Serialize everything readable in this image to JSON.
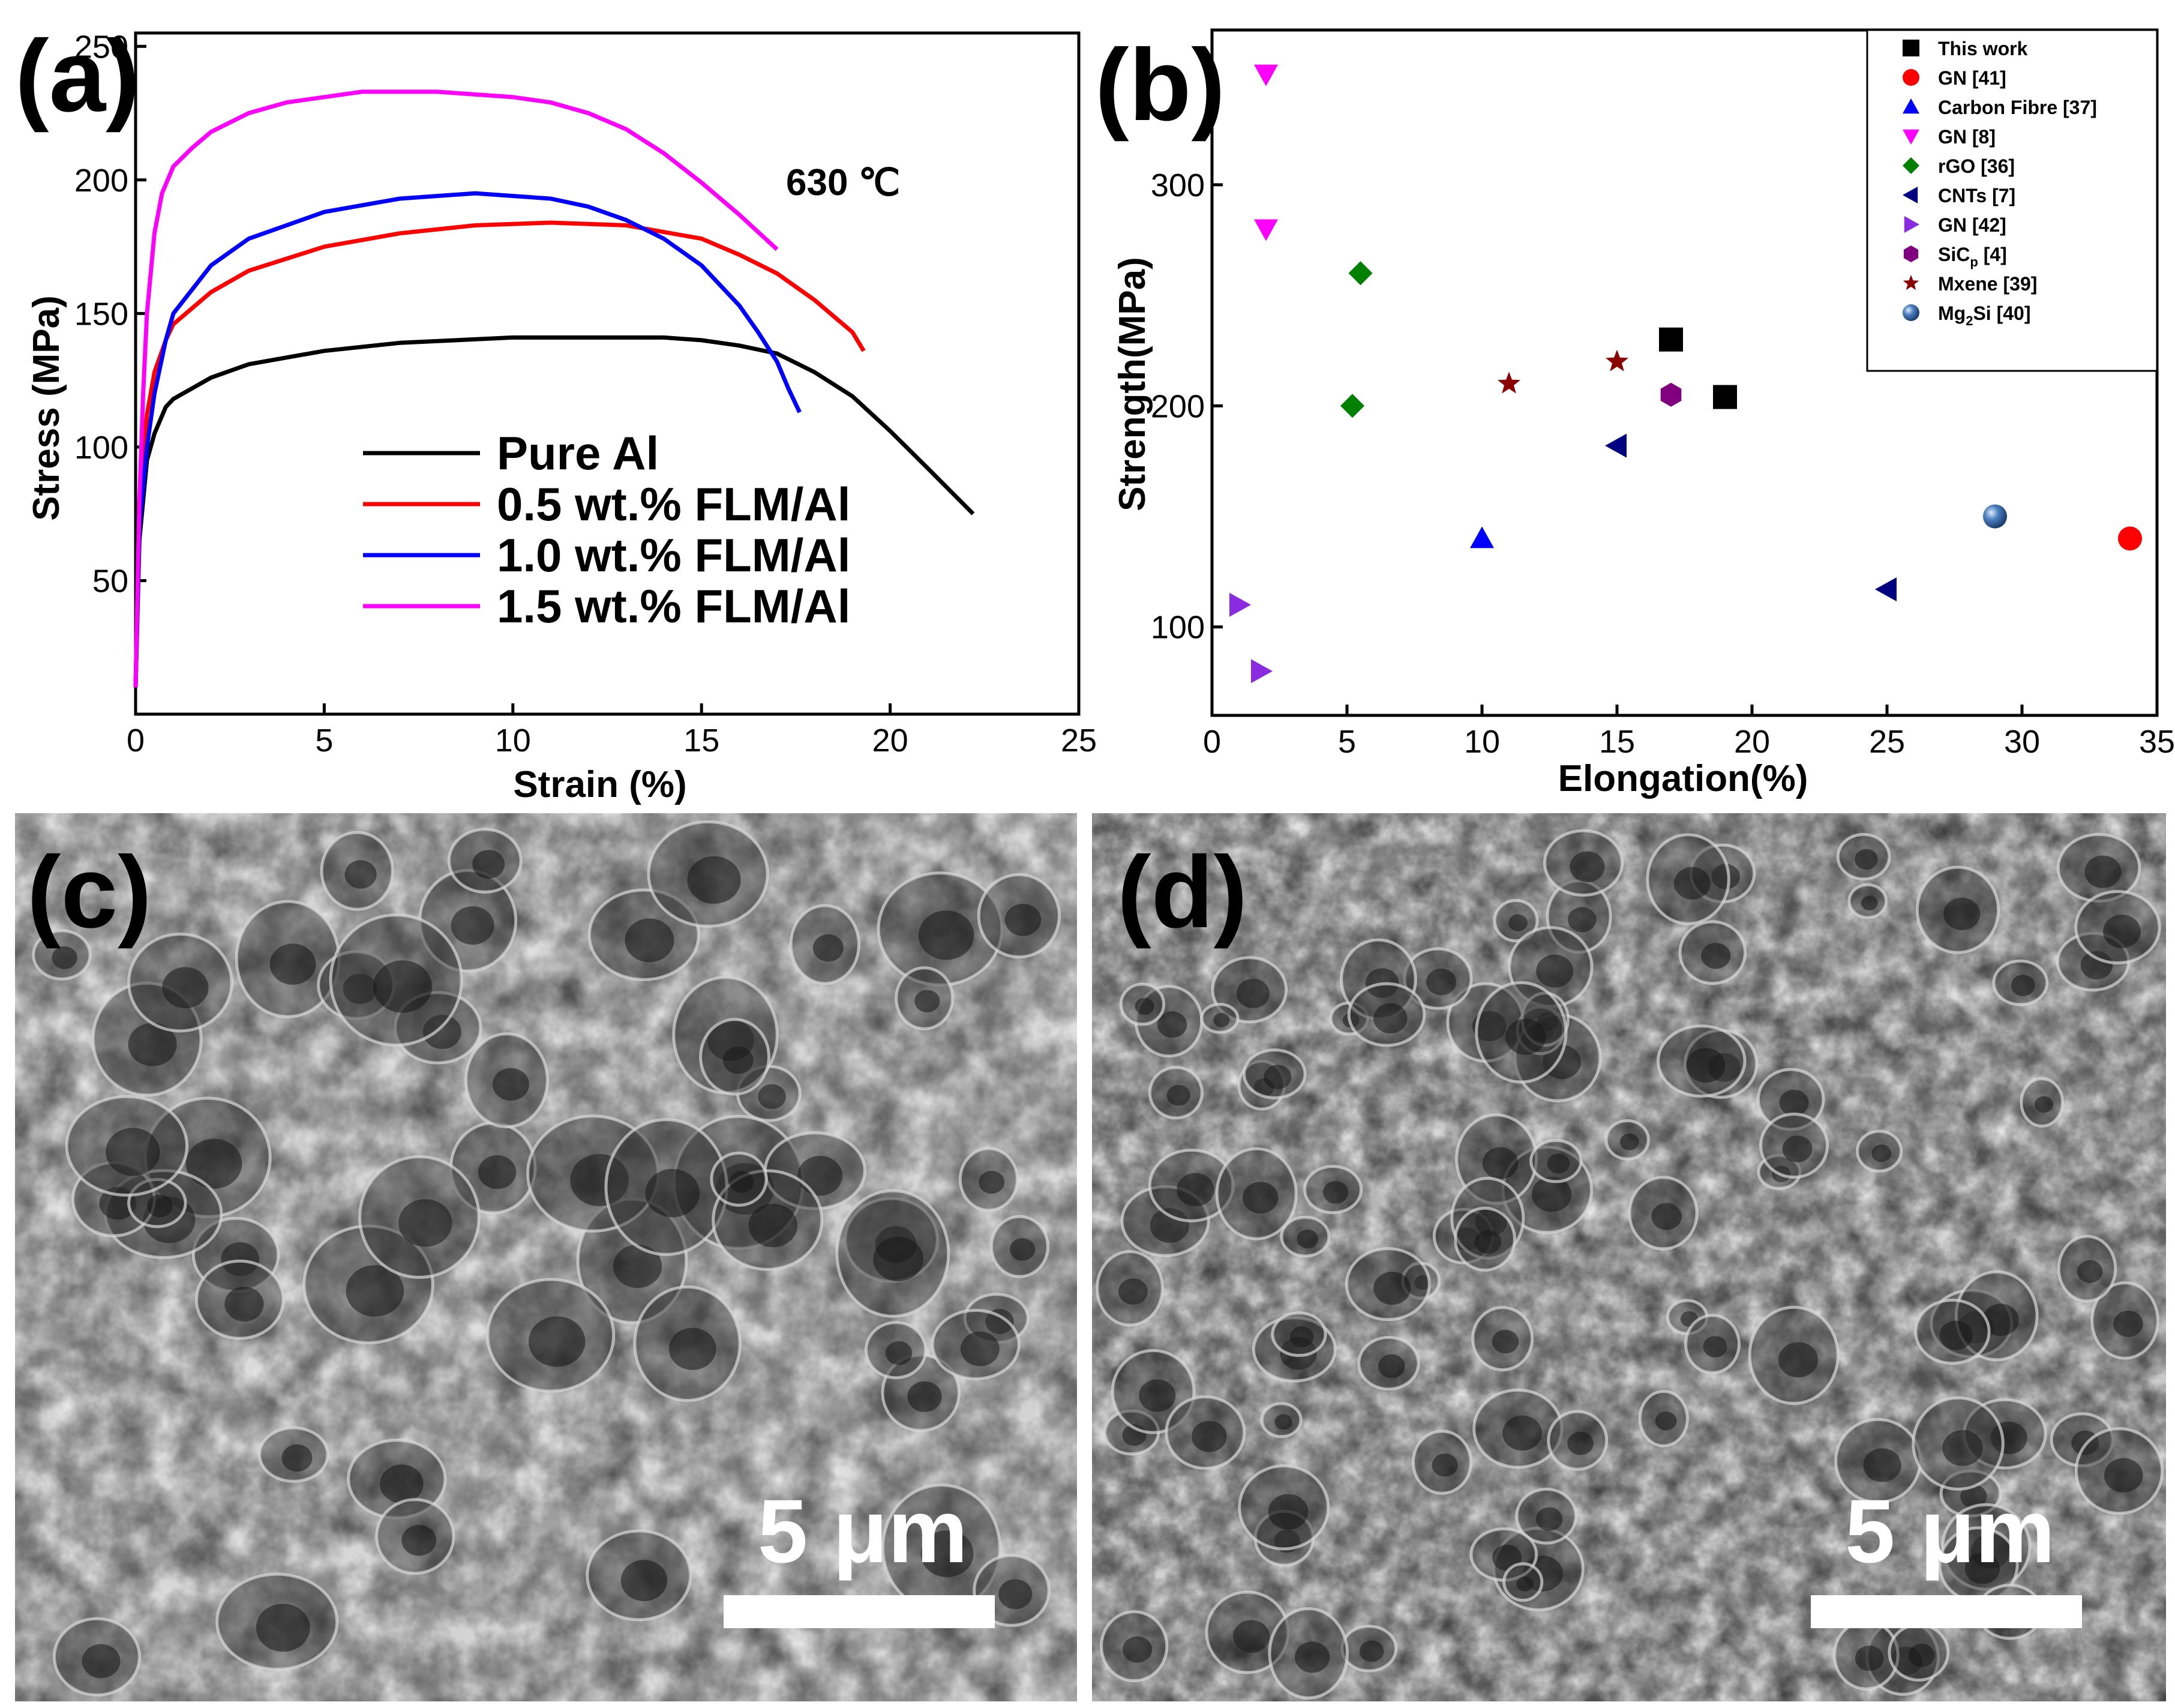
{
  "panels": {
    "a": {
      "label": "(a)"
    },
    "b": {
      "label": "(b)"
    },
    "c": {
      "label": "(c)",
      "scale_bar": "5 μm"
    },
    "d": {
      "label": "(d)",
      "scale_bar": "5 μm"
    }
  },
  "chart_data": [
    {
      "panel": "a",
      "type": "line",
      "annotation": "630 ℃",
      "xlabel": "Strain (%)",
      "ylabel": "Stress (MPa)",
      "xlim": [
        0,
        25
      ],
      "ylim": [
        0,
        255
      ],
      "xticks": [
        0,
        5,
        10,
        15,
        20,
        25
      ],
      "yticks": [
        50,
        100,
        150,
        200,
        250
      ],
      "legend_position": "bottom-center",
      "series": [
        {
          "name": "Pure Al",
          "color": "#000000",
          "x": [
            0,
            0.1,
            0.3,
            0.5,
            0.8,
            1,
            2,
            3,
            5,
            7,
            10,
            12,
            14,
            15,
            16,
            17,
            18,
            19,
            20,
            21,
            22.2
          ],
          "y": [
            10,
            65,
            95,
            105,
            115,
            118,
            126,
            131,
            136,
            139,
            141,
            141,
            141,
            140,
            138,
            135,
            128,
            119,
            106,
            92,
            75
          ]
        },
        {
          "name": "0.5 wt.% FLM/Al",
          "color": "#ff0000",
          "x": [
            0,
            0.1,
            0.3,
            0.5,
            0.8,
            1,
            2,
            3,
            5,
            7,
            9,
            11,
            13,
            15,
            16,
            17,
            18,
            19,
            19.3
          ],
          "y": [
            10,
            80,
            112,
            128,
            140,
            146,
            158,
            166,
            175,
            180,
            183,
            184,
            183,
            178,
            172,
            165,
            155,
            143,
            136
          ]
        },
        {
          "name": "1.0 wt.% FLM/Al",
          "color": "#0000ff",
          "x": [
            0,
            0.1,
            0.3,
            0.5,
            0.8,
            1,
            2,
            3,
            5,
            7,
            9,
            11,
            12,
            13,
            14,
            15,
            16,
            16.5,
            17,
            17.3,
            17.6
          ],
          "y": [
            10,
            70,
            100,
            120,
            140,
            150,
            168,
            178,
            188,
            193,
            195,
            193,
            190,
            185,
            178,
            168,
            153,
            143,
            132,
            122,
            113
          ]
        },
        {
          "name": "1.5 wt.% FLM/Al",
          "color": "#ff00ff",
          "x": [
            0,
            0.1,
            0.2,
            0.3,
            0.5,
            0.7,
            1,
            1.5,
            2,
            3,
            4,
            5,
            6,
            7,
            8,
            9,
            10,
            11,
            12,
            13,
            14,
            15,
            16,
            17
          ],
          "y": [
            10,
            80,
            120,
            150,
            180,
            195,
            205,
            212,
            218,
            225,
            229,
            231,
            233,
            233,
            233,
            232,
            231,
            229,
            225,
            219,
            210,
            199,
            187,
            174
          ]
        }
      ]
    },
    {
      "panel": "b",
      "type": "scatter",
      "xlabel": "Elongation(%)",
      "ylabel": "Strength(MPa)",
      "xlim": [
        0,
        35
      ],
      "ylim": [
        60,
        370
      ],
      "xticks": [
        0,
        5,
        10,
        15,
        20,
        25,
        30,
        35
      ],
      "yticks": [
        100,
        200,
        300
      ],
      "legend_position": "top-right",
      "series": [
        {
          "name": "This work",
          "marker": "square",
          "color": "#000000",
          "points": [
            [
              17,
              230
            ],
            [
              19,
              204
            ]
          ]
        },
        {
          "name": "GN [41]",
          "marker": "circle",
          "color": "#ff0000",
          "points": [
            [
              34,
              140
            ]
          ]
        },
        {
          "name": "Carbon Fibre [37]",
          "marker": "triangle-up",
          "color": "#0000ff",
          "points": [
            [
              10,
              140
            ]
          ]
        },
        {
          "name": "GN [8]",
          "marker": "triangle-down",
          "color": "#ff00ff",
          "points": [
            [
              2,
              350
            ],
            [
              2,
              280
            ]
          ]
        },
        {
          "name": "rGO [36]",
          "marker": "diamond",
          "color": "#008000",
          "points": [
            [
              5.5,
              260
            ],
            [
              5.2,
              200
            ]
          ]
        },
        {
          "name": "CNTs [7]",
          "marker": "triangle-left",
          "color": "#000080",
          "points": [
            [
              15,
              182
            ],
            [
              25,
              117
            ]
          ]
        },
        {
          "name": "GN [42]",
          "marker": "triangle-right",
          "color": "#8a2be2",
          "points": [
            [
              1,
              110
            ],
            [
              1.8,
              80
            ]
          ]
        },
        {
          "name": "SiC",
          "name_sub": "p",
          "name_tail": " [4]",
          "marker": "hexagon",
          "color": "#800080",
          "points": [
            [
              17,
              205
            ]
          ]
        },
        {
          "name": "Mxene [39]",
          "marker": "star",
          "color": "#8b0000",
          "points": [
            [
              11,
              210
            ],
            [
              15,
              220
            ]
          ]
        },
        {
          "name": "Mg",
          "name_sub": "2",
          "name_tail": "Si [40]",
          "marker": "sphere",
          "color": "#4a7fc0",
          "points": [
            [
              29,
              150
            ]
          ]
        }
      ]
    }
  ]
}
